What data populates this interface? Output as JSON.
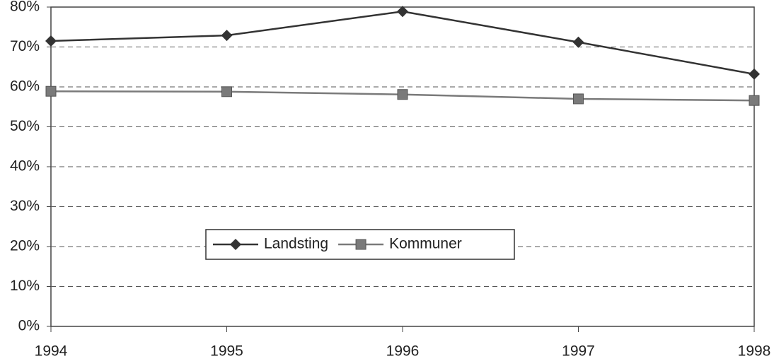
{
  "chart_data": {
    "type": "line",
    "x": [
      1994,
      1995,
      1996,
      1997,
      1998
    ],
    "xlim": [
      1994,
      1998
    ],
    "xticks": [
      1994,
      1995,
      1996,
      1997,
      1998
    ],
    "ylim": [
      0,
      80
    ],
    "yticks": [
      {
        "value": 0,
        "label": "0%"
      },
      {
        "value": 10,
        "label": "10%"
      },
      {
        "value": 20,
        "label": "20%"
      },
      {
        "value": 30,
        "label": "30%"
      },
      {
        "value": 40,
        "label": "40%"
      },
      {
        "value": 50,
        "label": "50%"
      },
      {
        "value": 60,
        "label": "60%"
      },
      {
        "value": 70,
        "label": "70%"
      },
      {
        "value": 80,
        "label": "80%"
      }
    ],
    "grid": true,
    "legend": "center",
    "series": [
      {
        "name": "Landsting",
        "color": "#333333",
        "marker": "diamond",
        "values": [
          71.5,
          72.9,
          78.9,
          71.2,
          63.2
        ]
      },
      {
        "name": "Kommuner",
        "color": "#7a7a7a",
        "marker": "square",
        "values": [
          58.9,
          58.8,
          58.1,
          57.0,
          56.6
        ]
      }
    ]
  }
}
